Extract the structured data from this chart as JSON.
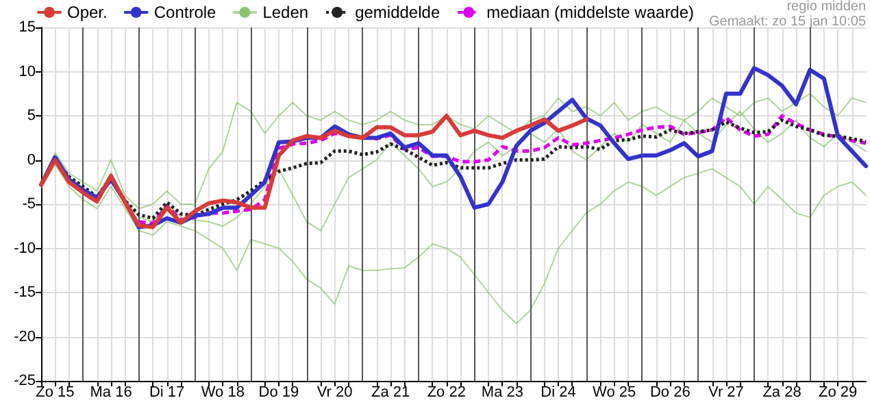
{
  "chart_data": {
    "type": "line",
    "title": "regio midden",
    "annotations": [
      "Gemaakt: zo 15 jan 10:05"
    ],
    "x": [
      "--01-15T06:00",
      "--01-15T12:00",
      "--01-15T18:00",
      "--01-16T00:00",
      "--01-16T06:00",
      "--01-16T12:00",
      "--01-16T18:00",
      "--01-17T00:00",
      "--01-17T06:00",
      "--01-17T12:00",
      "--01-17T18:00",
      "--01-18T00:00",
      "--01-18T06:00",
      "--01-18T12:00",
      "--01-18T18:00",
      "--01-19T00:00",
      "--01-19T06:00",
      "--01-19T12:00",
      "--01-19T18:00",
      "--01-20T00:00",
      "--01-20T06:00",
      "--01-20T12:00",
      "--01-20T18:00",
      "--01-21T00:00",
      "--01-21T06:00",
      "--01-21T12:00",
      "--01-21T18:00",
      "--01-22T00:00",
      "--01-22T06:00",
      "--01-22T12:00",
      "--01-22T18:00",
      "--01-23T00:00",
      "--01-23T06:00",
      "--01-23T12:00",
      "--01-23T18:00",
      "--01-24T00:00",
      "--01-24T06:00",
      "--01-24T12:00",
      "--01-24T18:00",
      "--01-25T00:00",
      "--01-25T06:00",
      "--01-25T12:00",
      "--01-25T18:00",
      "--01-26T00:00",
      "--01-26T06:00",
      "--01-26T12:00",
      "--01-26T18:00",
      "--01-27T00:00",
      "--01-27T06:00",
      "--01-27T12:00",
      "--01-27T18:00",
      "--01-28T00:00",
      "--01-28T06:00",
      "--01-28T12:00",
      "--01-28T18:00",
      "--01-29T00:00",
      "--01-29T06:00",
      "--01-29T12:00",
      "--01-29T18:00",
      "--01-30T00:00"
    ],
    "series": [
      {
        "name": "Oper.",
        "color": "#d93a3a",
        "line_style": "solid",
        "values": [
          -2.8,
          0,
          -2.5,
          -3.7,
          -4.7,
          -1.8,
          -4.8,
          -7.4,
          -7.6,
          -5.4,
          -7.1,
          -5.8,
          -4.9,
          -4.6,
          -4.8,
          -5.4,
          -5.4,
          0.5,
          2.2,
          2.7,
          2.5,
          3.3,
          2.7,
          2.5,
          3.7,
          3.7,
          2.8,
          2.8,
          3.2,
          5,
          2.8,
          3.3,
          2.8,
          2.5,
          3.3,
          3.9,
          4.6,
          3.3,
          3.9,
          4.6,
          null,
          null,
          null,
          null,
          null,
          null,
          null,
          null,
          null,
          null,
          null,
          null,
          null,
          null,
          null,
          null,
          null,
          null,
          null,
          null
        ]
      },
      {
        "name": "Controle",
        "color": "#3333cc",
        "line_style": "solid",
        "values": [
          -2.8,
          0.3,
          -2.2,
          -3.4,
          -4.3,
          -2.2,
          -4.7,
          -7.6,
          -7.4,
          -6.6,
          -7.1,
          -6.3,
          -6.1,
          -5.4,
          -5.4,
          -4,
          -2.5,
          2,
          2.1,
          2.5,
          2.5,
          3.8,
          2.9,
          2.5,
          2.5,
          3,
          1.4,
          1.9,
          0.5,
          0.5,
          -1.9,
          -5.4,
          -5,
          -2.5,
          1.6,
          3.3,
          4.2,
          5.5,
          6.8,
          4.7,
          3.9,
          1.9,
          0.1,
          0.5,
          0.5,
          1.1,
          1.9,
          0.4,
          1,
          7.5,
          7.5,
          10.4,
          9.6,
          8.4,
          6.3,
          10.2,
          9.2,
          2.7,
          1,
          -0.7
        ]
      },
      {
        "name": "Leden",
        "color": "#8cc46e",
        "line_style": "solid",
        "values": [
          -2.5,
          0.8,
          -1.5,
          -2.5,
          -3.5,
          0,
          -4,
          -5.5,
          -5,
          -3.5,
          -5,
          -5,
          -1,
          1,
          6.5,
          5.5,
          3,
          5,
          6.5,
          5,
          4.5,
          5.5,
          4.5,
          4,
          4.5,
          5.5,
          4.5,
          4,
          4,
          5,
          4,
          3.5,
          5,
          4,
          3,
          4.5,
          5,
          7,
          5.5,
          6,
          5,
          6.5,
          4.5,
          5.5,
          6,
          5,
          4.5,
          5.5,
          7,
          6,
          5,
          6.5,
          7,
          5.5,
          6.5,
          7.5,
          6,
          5,
          7,
          6.5
        ]
      },
      {
        "name": "gemiddelde",
        "color": "#222222",
        "line_style": "dotted",
        "values": [
          -2.8,
          0,
          -1.9,
          -3,
          -4.2,
          -2,
          -4.6,
          -6.2,
          -6.6,
          -4.8,
          -6.1,
          -6.3,
          -5.6,
          -5,
          -4.5,
          -3.5,
          -2.3,
          -1.3,
          -0.9,
          -0.4,
          -0.3,
          1,
          1,
          0.6,
          0.9,
          1.8,
          1.2,
          0.3,
          -0.6,
          -0.3,
          -0.9,
          -0.9,
          -0.9,
          -0.4,
          0,
          0,
          0.1,
          1.5,
          1.4,
          1.5,
          1.2,
          2.2,
          2.3,
          2.7,
          2.6,
          3.4,
          3,
          3.2,
          3.4,
          4.3,
          3.6,
          3.1,
          3.2,
          4.5,
          3.8,
          3.4,
          2.8,
          2.7,
          2.4,
          2.1
        ]
      },
      {
        "name": "mediaan (middelste waarde)",
        "color": "#dd00ee",
        "line_style": "dashed",
        "values": [
          null,
          null,
          null,
          null,
          null,
          null,
          null,
          -7,
          -7.2,
          -5.2,
          -6.8,
          -6.5,
          -6,
          -6,
          -5.8,
          -5.6,
          -4.5,
          1.3,
          1.8,
          1.9,
          2.2,
          3,
          2.8,
          2.6,
          2.4,
          2.8,
          1.2,
          1.4,
          0.4,
          0.4,
          -0.2,
          -0.2,
          0,
          1.5,
          1,
          1,
          1.4,
          2.5,
          1.7,
          1.9,
          2.2,
          2.5,
          2.9,
          3.4,
          3.7,
          3.8,
          2.9,
          3.1,
          3.4,
          4.8,
          3.4,
          2.7,
          2.9,
          5,
          4.1,
          3.4,
          2.9,
          2.6,
          2.2,
          1.9
        ]
      },
      {
        "color": "#8cc46e",
        "line_style": "solid",
        "values": [
          -3.2,
          -0.5,
          -3,
          -4.5,
          -5.5,
          -3,
          -5.5,
          -8,
          -8.5,
          -7,
          -7.5,
          -8,
          -9,
          -10,
          -12.5,
          -9,
          -9.5,
          -10,
          -11.5,
          -13.5,
          -14.5,
          -16.3,
          -12,
          -12.5,
          -12.5,
          -12.3,
          -12.2,
          -11,
          -9.5,
          -10,
          -11,
          -13,
          -15,
          -17,
          -18.5,
          -17,
          -14,
          -10,
          -8,
          -6,
          -5,
          -3.5,
          -2.5,
          -3,
          -4,
          -3,
          -2,
          -1.5,
          -1,
          -2,
          -3,
          -5,
          -3,
          -4.5,
          -6,
          -6.5,
          -4,
          -3,
          -2.5,
          -4
        ]
      },
      {
        "color": "#8cc46e",
        "line_style": "solid",
        "values": [
          -2.9,
          0.2,
          -2.2,
          -3.2,
          -4,
          -1.5,
          -4.5,
          -6.5,
          -7,
          -5,
          -6.5,
          -6.8,
          -7,
          -7.5,
          -6.5,
          -5,
          -3,
          -1,
          -4,
          -7,
          -8,
          -5,
          -2,
          -1,
          0,
          2,
          0.5,
          -1,
          -3,
          -2.5,
          -1,
          1,
          2,
          0.5,
          1.5,
          3,
          2,
          3.5,
          1,
          0,
          1.5,
          3,
          2,
          4,
          3,
          2,
          4.5,
          3,
          2,
          4,
          5.5,
          3.5,
          2,
          3,
          4.5,
          2.5,
          1.5,
          3,
          2,
          1
        ]
      }
    ],
    "xlim": [
      "--01-15T06:00",
      "--01-30T00:00"
    ],
    "xticks": [
      {
        "value": "--01-15T06:00",
        "label": null
      },
      {
        "value": "--01-15T12:00",
        "label": "Zo 15"
      },
      {
        "value": "--01-15T18:00",
        "label": null
      },
      {
        "value": "--01-16T06:00",
        "label": null
      },
      {
        "value": "--01-16T12:00",
        "label": "Ma 16"
      },
      {
        "value": "--01-16T18:00",
        "label": null
      },
      {
        "value": "--01-17T06:00",
        "label": null
      },
      {
        "value": "--01-17T12:00",
        "label": "Di 17"
      },
      {
        "value": "--01-17T18:00",
        "label": null
      },
      {
        "value": "--01-18T06:00",
        "label": null
      },
      {
        "value": "--01-18T12:00",
        "label": "Wo 18"
      },
      {
        "value": "--01-18T18:00",
        "label": null
      },
      {
        "value": "--01-19T06:00",
        "label": null
      },
      {
        "value": "--01-19T12:00",
        "label": "Do 19"
      },
      {
        "value": "--01-19T18:00",
        "label": null
      },
      {
        "value": "--01-20T06:00",
        "label": null
      },
      {
        "value": "--01-20T12:00",
        "label": "Vr 20"
      },
      {
        "value": "--01-20T18:00",
        "label": null
      },
      {
        "value": "--01-21T06:00",
        "label": null
      },
      {
        "value": "--01-21T12:00",
        "label": "Za 21"
      },
      {
        "value": "--01-21T18:00",
        "label": null
      },
      {
        "value": "--01-22T06:00",
        "label": null
      },
      {
        "value": "--01-22T12:00",
        "label": "Zo 22"
      },
      {
        "value": "--01-22T18:00",
        "label": null
      },
      {
        "value": "--01-23T06:00",
        "label": null
      },
      {
        "value": "--01-23T12:00",
        "label": "Ma 23"
      },
      {
        "value": "--01-23T18:00",
        "label": null
      },
      {
        "value": "--01-24T06:00",
        "label": null
      },
      {
        "value": "--01-24T12:00",
        "label": "Di 24"
      },
      {
        "value": "--01-24T18:00",
        "label": null
      },
      {
        "value": "--01-25T06:00",
        "label": null
      },
      {
        "value": "--01-25T12:00",
        "label": "Wo 25"
      },
      {
        "value": "--01-25T18:00",
        "label": null
      },
      {
        "value": "--01-26T06:00",
        "label": null
      },
      {
        "value": "--01-26T12:00",
        "label": "Do 26"
      },
      {
        "value": "--01-26T18:00",
        "label": null
      },
      {
        "value": "--01-27T06:00",
        "label": null
      },
      {
        "value": "--01-27T12:00",
        "label": "Vr 27"
      },
      {
        "value": "--01-27T18:00",
        "label": null
      },
      {
        "value": "--01-28T06:00",
        "label": null
      },
      {
        "value": "--01-28T12:00",
        "label": "Za 28"
      },
      {
        "value": "--01-28T18:00",
        "label": null
      },
      {
        "value": "--01-29T06:00",
        "label": null
      },
      {
        "value": "--01-29T12:00",
        "label": "Zo 29"
      },
      {
        "value": "--01-29T18:00",
        "label": null
      }
    ],
    "ylim": [
      -25,
      15
    ],
    "yticks": [
      -25,
      -20,
      -15,
      -10,
      -5,
      0,
      5,
      10,
      15
    ],
    "ref_lines": [
      {
        "axis": "x",
        "value": "--01-16",
        "color": "#555555"
      },
      {
        "axis": "x",
        "value": "--01-17",
        "color": "#555555"
      },
      {
        "axis": "x",
        "value": "--01-18",
        "color": "#555555"
      },
      {
        "axis": "x",
        "value": "--01-19",
        "color": "#555555"
      },
      {
        "axis": "x",
        "value": "--01-20",
        "color": "#555555"
      },
      {
        "axis": "x",
        "value": "--01-21",
        "color": "#555555"
      },
      {
        "axis": "x",
        "value": "--01-22",
        "color": "#555555"
      },
      {
        "axis": "x",
        "value": "--01-23",
        "color": "#555555"
      },
      {
        "axis": "x",
        "value": "--01-24",
        "color": "#555555"
      },
      {
        "axis": "x",
        "value": "--01-25",
        "color": "#555555"
      },
      {
        "axis": "x",
        "value": "--01-26",
        "color": "#555555"
      },
      {
        "axis": "x",
        "value": "--01-27",
        "color": "#555555"
      },
      {
        "axis": "x",
        "value": "--01-28",
        "color": "#555555"
      },
      {
        "axis": "x",
        "value": "--01-29",
        "color": "#555555"
      }
    ],
    "grid": true,
    "legend": "top left"
  }
}
